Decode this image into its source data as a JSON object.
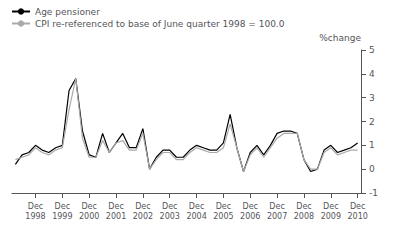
{
  "chart_data": {
    "type": "line",
    "ylabel": "%change",
    "categories": [
      null,
      null,
      null,
      "Dec\n1998",
      null,
      null,
      null,
      "Dec\n1999",
      null,
      null,
      null,
      "Dec\n2000",
      null,
      null,
      null,
      "Dec\n2001",
      null,
      null,
      null,
      "Dec\n2002",
      null,
      null,
      null,
      "Dec\n2003",
      null,
      null,
      null,
      "Dec\n2004",
      null,
      null,
      null,
      "Dec\n2005",
      null,
      null,
      null,
      "Dec\n2006",
      null,
      null,
      null,
      "Dec\n2007",
      null,
      null,
      null,
      "Dec\n2008",
      null,
      null,
      null,
      "Dec\n2009",
      null,
      null,
      null,
      "Dec\n2010"
    ],
    "series": [
      {
        "name": "Age pensioner",
        "color": "#000000",
        "values": [
          0.2,
          0.6,
          0.7,
          1.0,
          0.8,
          0.7,
          0.9,
          1.0,
          3.3,
          3.8,
          1.6,
          0.6,
          0.5,
          1.5,
          0.7,
          1.1,
          1.5,
          0.9,
          0.9,
          1.7,
          0.0,
          0.5,
          0.8,
          0.8,
          0.5,
          0.5,
          0.8,
          1.0,
          0.9,
          0.8,
          0.8,
          1.1,
          2.3,
          0.9,
          -0.1,
          0.7,
          1.0,
          0.6,
          1.0,
          1.5,
          1.6,
          1.6,
          1.5,
          0.4,
          -0.1,
          0.0,
          0.8,
          1.0,
          0.7,
          0.8,
          0.9,
          1.1
        ]
      },
      {
        "name": "CPI re-referenced to base of June quarter 1998 = 100.0",
        "color": "#aaaaaa",
        "values": [
          0.4,
          0.5,
          0.6,
          0.9,
          0.7,
          0.6,
          0.8,
          0.9,
          2.5,
          3.8,
          1.3,
          0.5,
          0.5,
          1.2,
          0.7,
          1.1,
          1.2,
          0.8,
          0.8,
          1.5,
          0.0,
          0.4,
          0.7,
          0.7,
          0.4,
          0.4,
          0.7,
          0.9,
          0.8,
          0.7,
          0.7,
          0.9,
          1.9,
          0.9,
          -0.1,
          0.6,
          0.9,
          0.5,
          0.9,
          1.3,
          1.5,
          1.5,
          1.5,
          0.4,
          0.0,
          0.0,
          0.7,
          0.9,
          0.6,
          0.7,
          0.8,
          0.8
        ]
      }
    ],
    "ylim": [
      -1,
      5
    ],
    "yticks": [
      -1,
      0,
      1,
      2,
      3,
      4,
      5
    ],
    "grid": false,
    "legend": "upper left"
  }
}
